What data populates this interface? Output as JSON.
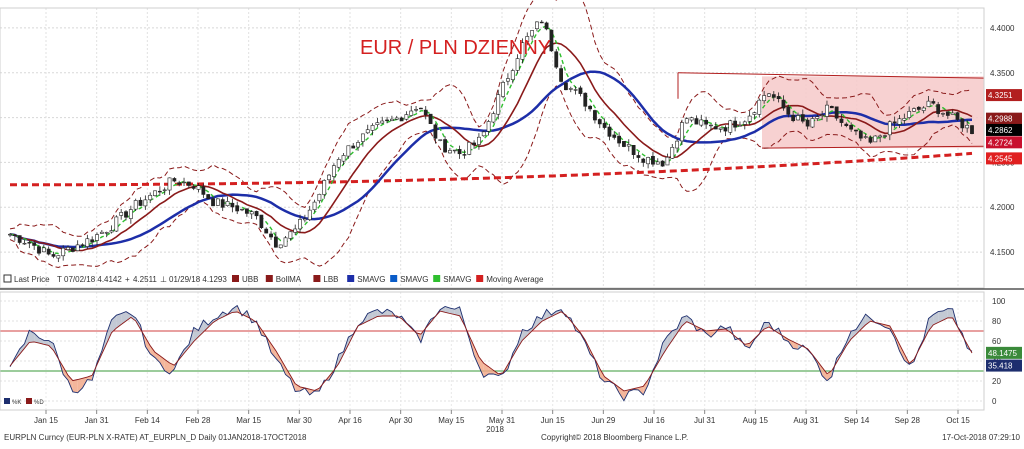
{
  "chart_data": [
    {
      "type": "candlestick",
      "title": "EUR / PLN DZIENNY",
      "ylim": [
        4.13,
        4.42
      ],
      "y_ticks": [
        "4.4000",
        "4.3500",
        "4.3000",
        "4.2500",
        "4.2000",
        "4.1500"
      ],
      "y_tick_values": [
        4.4,
        4.35,
        4.3,
        4.25,
        4.2,
        4.15
      ],
      "x_ticks": [
        "Jan 15",
        "Jan 31",
        "Feb 14",
        "Feb 28",
        "Mar 15",
        "Mar 30",
        "Apr 16",
        "Apr 30",
        "May 15",
        "May 31",
        "Jun 15",
        "Jun 29",
        "Jul 16",
        "Jul 31",
        "Aug 15",
        "Aug 31",
        "Sep 14",
        "Sep 28",
        "Oct 15"
      ],
      "x_year_label": "2018",
      "price_keypoints": [
        4.17,
        4.16,
        4.145,
        4.155,
        4.165,
        4.18,
        4.2,
        4.215,
        4.23,
        4.225,
        4.205,
        4.2,
        4.19,
        4.16,
        4.175,
        4.21,
        4.255,
        4.275,
        4.29,
        4.3,
        4.315,
        4.27,
        4.26,
        4.275,
        4.33,
        4.38,
        4.41,
        4.34,
        4.32,
        4.29,
        4.27,
        4.255,
        4.25,
        4.3,
        4.29,
        4.29,
        4.3,
        4.33,
        4.305,
        4.29,
        4.31,
        4.285,
        4.27,
        4.29,
        4.305,
        4.315,
        4.3,
        4.286
      ],
      "value_labels": [
        {
          "text": "4.3251",
          "value": 4.3251,
          "color": "#b21f1f"
        },
        {
          "text": "4.2988",
          "value": 4.2988,
          "color": "#8a1a1a"
        },
        {
          "text": "4.2862",
          "value": 4.2862,
          "color": "#000000"
        },
        {
          "text": "4.2724",
          "value": 4.2724,
          "color": "#c8102e"
        },
        {
          "text": "4.2545",
          "value": 4.2545,
          "color": "#e02020"
        }
      ],
      "legend": {
        "last_price": "Last Price",
        "high": "07/02/18 4.4142",
        "current": "4.2511",
        "low": "01/29/18 4.1293",
        "items": [
          {
            "label": "UBB",
            "color": "#8a1a1a"
          },
          {
            "label": "BollMA",
            "color": "#8a1a1a"
          },
          {
            "label": "LBB",
            "color": "#8a1a1a"
          },
          {
            "label": "SMAVG",
            "color": "#1d2ea8"
          },
          {
            "label": "SMAVG",
            "color": "#0a5cc8"
          },
          {
            "label": "SMAVG",
            "color": "#2fbf2f"
          },
          {
            "label": "Moving Average",
            "color": "#d42020"
          }
        ]
      },
      "channel": {
        "top": 4.346,
        "bottom": 4.266,
        "color": "#b21f1f",
        "fill": "#f6c9c9"
      }
    },
    {
      "type": "line",
      "name": "stochastic",
      "ylim": [
        -5,
        105
      ],
      "y_ticks": [
        "100",
        "80",
        "60",
        "40",
        "20",
        "0"
      ],
      "y_tick_values": [
        100,
        80,
        60,
        40,
        20,
        0
      ],
      "levels": [
        70,
        30
      ],
      "value_labels": [
        {
          "text": "48.1475",
          "value": 48.1475,
          "color": "#3a8a3a"
        },
        {
          "text": "35.418",
          "value": 35.418,
          "color": "#1d2e6e"
        }
      ],
      "legend": [
        {
          "label": "%K",
          "color": "#1d2e6e"
        },
        {
          "label": "%D",
          "color": "#8a1a1a"
        }
      ],
      "k_keypoints": [
        30,
        70,
        60,
        10,
        20,
        80,
        90,
        40,
        30,
        70,
        85,
        95,
        80,
        40,
        10,
        5,
        40,
        80,
        90,
        85,
        60,
        95,
        90,
        30,
        20,
        70,
        85,
        95,
        60,
        20,
        5,
        10,
        60,
        85,
        65,
        75,
        50,
        80,
        60,
        50,
        20,
        70,
        85,
        75,
        30,
        85,
        90,
        45
      ],
      "d_keypoints": [
        35,
        60,
        55,
        20,
        25,
        70,
        85,
        50,
        35,
        60,
        80,
        90,
        80,
        50,
        15,
        10,
        35,
        75,
        85,
        85,
        65,
        90,
        85,
        40,
        25,
        60,
        80,
        90,
        65,
        25,
        10,
        15,
        50,
        80,
        70,
        72,
        55,
        75,
        62,
        52,
        25,
        60,
        80,
        75,
        35,
        75,
        85,
        48
      ]
    }
  ],
  "footer": {
    "left": "EURPLN Curncy (EUR-PLN X-RATE) AT_EURPLN_D  Daily 01JAN2018-17OCT2018",
    "center": "Copyright© 2018 Bloomberg Finance L.P.",
    "right": "17-Oct-2018 07:29:10"
  }
}
